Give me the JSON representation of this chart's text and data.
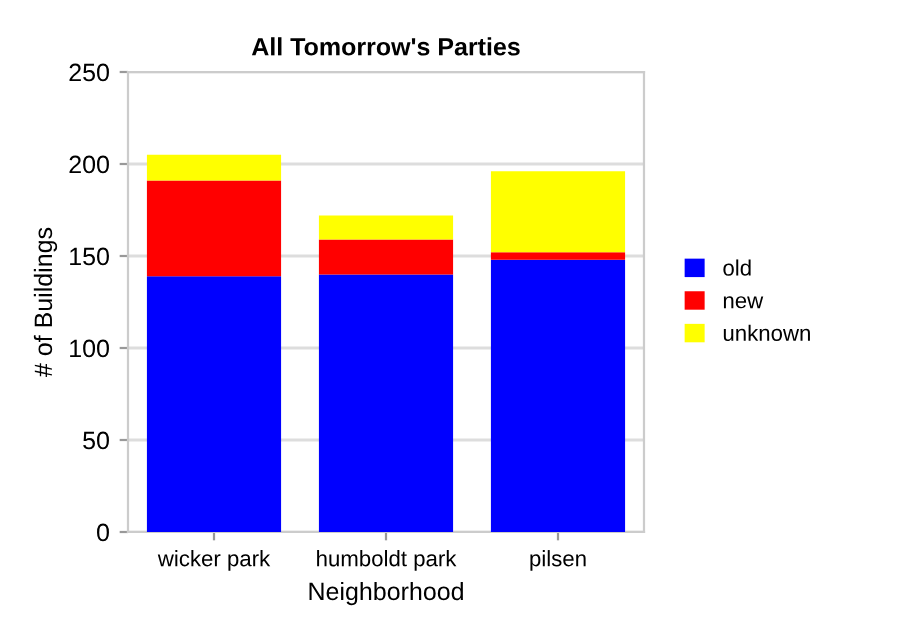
{
  "chart_data": {
    "type": "bar",
    "title": "All Tomorrow's Parties",
    "xlabel": "Neighborhood",
    "ylabel": "# of Buildings",
    "categories": [
      "wicker park",
      "humboldt park",
      "pilsen"
    ],
    "series": [
      {
        "name": "old",
        "color": "#0000ff",
        "values": [
          139,
          140,
          148
        ]
      },
      {
        "name": "new",
        "color": "#ff0000",
        "values": [
          52,
          19,
          4
        ]
      },
      {
        "name": "unknown",
        "color": "#ffff00",
        "values": [
          14,
          13,
          44
        ]
      }
    ],
    "stacked": true,
    "ylim": [
      0,
      250
    ],
    "yticks": [
      0,
      50,
      100,
      150,
      200,
      250
    ],
    "grid": "y",
    "legend": "right"
  }
}
